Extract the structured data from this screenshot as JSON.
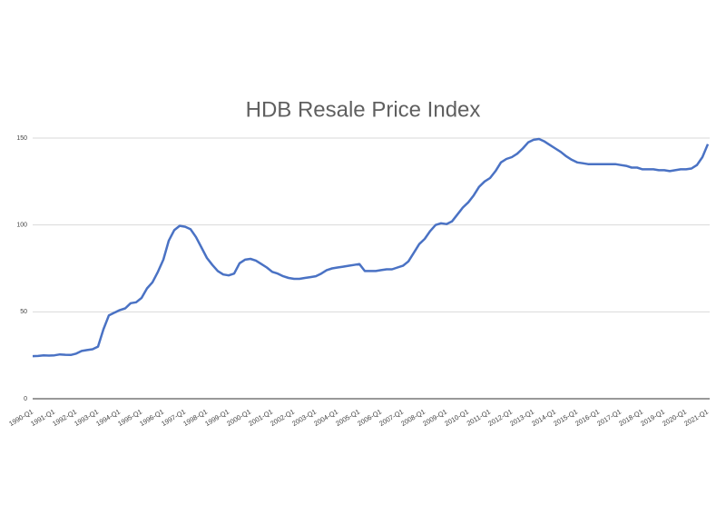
{
  "chart_data": {
    "type": "line",
    "title": "HDB Resale Price Index",
    "categories": [
      "1990-Q1",
      null,
      null,
      null,
      "1991-Q1",
      null,
      null,
      null,
      "1992-Q1",
      null,
      null,
      null,
      "1993-Q1",
      null,
      null,
      null,
      "1994-Q1",
      null,
      null,
      null,
      "1995-Q1",
      null,
      null,
      null,
      "1996-Q1",
      null,
      null,
      null,
      "1997-Q1",
      null,
      null,
      null,
      "1998-Q1",
      null,
      null,
      null,
      "1999-Q1",
      null,
      null,
      null,
      "2000-Q1",
      null,
      null,
      null,
      "2001-Q1",
      null,
      null,
      null,
      "2002-Q1",
      null,
      null,
      null,
      "2003-Q1",
      null,
      null,
      null,
      "2004-Q1",
      null,
      null,
      null,
      "2005-Q1",
      null,
      null,
      null,
      "2006-Q1",
      null,
      null,
      null,
      "2007-Q1",
      null,
      null,
      null,
      "2008-Q1",
      null,
      null,
      null,
      "2009-Q1",
      null,
      null,
      null,
      "2010-Q1",
      null,
      null,
      null,
      "2011-Q1",
      null,
      null,
      null,
      "2012-Q1",
      null,
      null,
      null,
      "2013-Q1",
      null,
      null,
      null,
      "2014-Q1",
      null,
      null,
      null,
      "2015-Q1",
      null,
      null,
      null,
      "2016-Q1",
      null,
      null,
      null,
      "2017-Q1",
      null,
      null,
      null,
      "2018-Q1",
      null,
      null,
      null,
      "2019-Q1",
      null,
      null,
      null,
      "2020-Q1",
      null,
      null,
      null,
      "2021-Q1"
    ],
    "values": [
      24.5,
      24.6,
      25,
      24.8,
      25,
      25.5,
      25.3,
      25.2,
      26,
      27.5,
      28,
      28.5,
      30,
      40,
      48,
      49.5,
      51,
      52,
      55,
      55.5,
      58,
      63.5,
      67,
      73,
      80,
      91,
      97,
      99.5,
      99,
      97.5,
      93,
      87,
      81,
      77,
      73.5,
      71.5,
      71,
      72,
      78,
      80,
      80.5,
      79.5,
      77.5,
      75.5,
      73,
      72,
      70.5,
      69.5,
      69,
      69,
      69.5,
      70,
      70.5,
      72,
      74,
      75,
      75.5,
      76,
      76.5,
      77,
      77.5,
      73.5,
      73.5,
      73.5,
      74,
      74.5,
      74.5,
      75.5,
      76.5,
      79,
      84,
      89,
      92,
      96.5,
      100,
      101,
      100.5,
      102,
      106,
      110,
      113,
      117,
      122,
      125,
      127,
      131,
      136,
      138,
      139,
      141,
      144,
      147.5,
      149,
      149.5,
      148,
      146,
      144,
      142,
      139.5,
      137.5,
      136,
      135.5,
      135,
      135,
      135,
      135,
      135,
      135,
      134.5,
      134,
      133,
      133,
      132,
      132,
      132,
      131.5,
      131.5,
      131,
      131.5,
      132,
      132,
      132.5,
      134.5,
      139,
      146.5
    ],
    "color": "#4a72c4",
    "ylim": [
      0,
      150
    ],
    "yticks": [
      0,
      50,
      100,
      150
    ],
    "grid": true
  }
}
